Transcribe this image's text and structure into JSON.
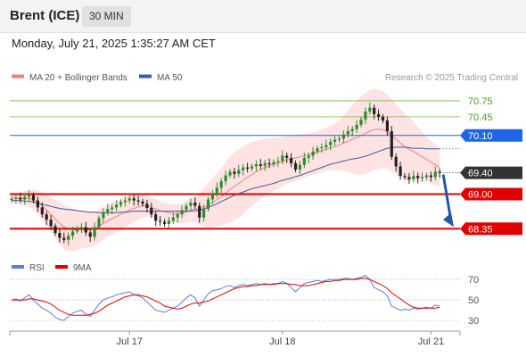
{
  "header": {
    "symbol": "Brent (ICE)",
    "interval": "30 MIN",
    "datetime": "Monday, July 21, 2025 1:35:27 AM CET"
  },
  "colors": {
    "bollinger": "#f08080",
    "bollinger_fill": "#ffd8d8",
    "ma50": "#3c5aa0",
    "candle_up": "#2e8b2e",
    "candle_down": "#222222",
    "resistance": "#6cbf3a",
    "pivot": "#1f66e5",
    "support": "#e00000",
    "last_price": "#333333",
    "arrow": "#2456a6",
    "rsi": "#5b7fd6",
    "rsi_ma": "#e00000"
  },
  "chart_data": [
    {
      "type": "candlestick",
      "legend": [
        {
          "label": "MA 20 + Bollinger Bands",
          "color": "#f08080"
        },
        {
          "label": "MA 50",
          "color": "#3c5aa0"
        }
      ],
      "credit": "Research © 2025 Trading Central",
      "ylim": [
        67.92,
        71.0
      ],
      "x_ticks": [
        {
          "index": 27,
          "label": "Jul 17"
        },
        {
          "index": 62,
          "label": "Jul 18"
        },
        {
          "index": 96,
          "label": "Jul 21"
        }
      ],
      "levels": [
        {
          "value": 70.75,
          "label": "70.75",
          "role": "resistance"
        },
        {
          "value": 70.45,
          "label": "70.45",
          "role": "resistance"
        },
        {
          "value": 70.1,
          "label": "70.10",
          "role": "pivot"
        },
        {
          "value": 69.4,
          "label": "69.40",
          "role": "last"
        },
        {
          "value": 69.0,
          "label": "69.00",
          "role": "support"
        },
        {
          "value": 68.35,
          "label": "68.35",
          "role": "support"
        }
      ],
      "close": [
        68.91,
        68.93,
        68.9,
        68.95,
        68.98,
        68.88,
        68.75,
        68.62,
        68.52,
        68.4,
        68.27,
        68.18,
        68.14,
        68.22,
        68.3,
        68.35,
        68.38,
        68.28,
        68.2,
        68.38,
        68.55,
        68.66,
        68.72,
        68.75,
        68.8,
        68.85,
        68.88,
        68.92,
        68.88,
        68.86,
        68.82,
        68.74,
        68.62,
        68.5,
        68.48,
        68.44,
        68.5,
        68.56,
        68.62,
        68.7,
        68.78,
        68.84,
        68.78,
        68.56,
        68.72,
        68.9,
        69.0,
        69.12,
        69.24,
        69.35,
        69.42,
        69.38,
        69.45,
        69.5,
        69.48,
        69.52,
        69.56,
        69.53,
        69.58,
        69.56,
        69.6,
        69.62,
        69.72,
        69.68,
        69.58,
        69.46,
        69.55,
        69.68,
        69.72,
        69.8,
        69.86,
        69.88,
        69.92,
        69.98,
        70.02,
        70.04,
        70.12,
        70.18,
        70.22,
        70.3,
        70.4,
        70.55,
        70.62,
        70.5,
        70.45,
        70.38,
        70.18,
        69.7,
        69.52,
        69.34,
        69.32,
        69.28,
        69.34,
        69.3,
        69.32,
        69.35,
        69.32,
        69.42,
        69.4
      ],
      "ma20": [
        68.94,
        68.92,
        68.92,
        68.92,
        68.92,
        68.9,
        68.85,
        68.78,
        68.7,
        68.62,
        68.53,
        68.45,
        68.38,
        68.35,
        68.33,
        68.33,
        68.33,
        68.33,
        68.33,
        68.36,
        68.4,
        68.45,
        68.5,
        68.54,
        68.58,
        68.62,
        68.66,
        68.7,
        68.73,
        68.76,
        68.78,
        68.78,
        68.75,
        68.72,
        68.69,
        68.67,
        68.65,
        68.64,
        68.63,
        68.64,
        68.67,
        68.7,
        68.72,
        68.72,
        68.75,
        68.79,
        68.84,
        68.9,
        68.95,
        69.02,
        69.09,
        69.14,
        69.2,
        69.26,
        69.32,
        69.37,
        69.42,
        69.46,
        69.5,
        69.53,
        69.56,
        69.58,
        69.61,
        69.64,
        69.66,
        69.68,
        69.7,
        69.72,
        69.74,
        69.76,
        69.79,
        69.81,
        69.84,
        69.87,
        69.89,
        69.92,
        69.96,
        69.99,
        70.03,
        70.06,
        70.1,
        70.14,
        70.18,
        70.21,
        70.22,
        70.21,
        70.17,
        70.1,
        70.03,
        69.96,
        69.89,
        69.84,
        69.8,
        69.75,
        69.7,
        69.65,
        69.6,
        69.55,
        69.5
      ],
      "ma50": [
        68.88,
        68.88,
        68.88,
        68.87,
        68.86,
        68.85,
        68.83,
        68.81,
        68.79,
        68.77,
        68.75,
        68.73,
        68.72,
        68.71,
        68.7,
        68.69,
        68.68,
        68.67,
        68.66,
        68.66,
        68.65,
        68.65,
        68.65,
        68.65,
        68.65,
        68.66,
        68.66,
        68.67,
        68.68,
        68.68,
        68.68,
        68.68,
        68.68,
        68.68,
        68.68,
        68.68,
        68.68,
        68.68,
        68.68,
        68.68,
        68.68,
        68.68,
        68.69,
        68.7,
        68.72,
        68.75,
        68.78,
        68.82,
        68.86,
        68.9,
        68.94,
        68.98,
        69.01,
        69.04,
        69.07,
        69.1,
        69.12,
        69.14,
        69.16,
        69.18,
        69.2,
        69.23,
        69.26,
        69.28,
        69.3,
        69.33,
        69.35,
        69.38,
        69.41,
        69.44,
        69.47,
        69.5,
        69.53,
        69.56,
        69.58,
        69.6,
        69.62,
        69.64,
        69.66,
        69.67,
        69.69,
        69.71,
        69.74,
        69.77,
        69.8,
        69.83,
        69.86,
        69.87,
        69.88,
        69.88,
        69.88,
        69.87,
        69.86,
        69.86,
        69.86,
        69.85,
        69.85,
        69.85,
        69.85
      ],
      "band_width": [
        0.1,
        0.11,
        0.12,
        0.14,
        0.16,
        0.19,
        0.22,
        0.26,
        0.3,
        0.33,
        0.36,
        0.4,
        0.42,
        0.42,
        0.4,
        0.38,
        0.35,
        0.33,
        0.32,
        0.32,
        0.32,
        0.31,
        0.3,
        0.3,
        0.3,
        0.3,
        0.28,
        0.27,
        0.26,
        0.24,
        0.22,
        0.2,
        0.19,
        0.18,
        0.17,
        0.17,
        0.17,
        0.17,
        0.18,
        0.19,
        0.2,
        0.22,
        0.24,
        0.3,
        0.36,
        0.42,
        0.46,
        0.5,
        0.54,
        0.58,
        0.62,
        0.64,
        0.64,
        0.64,
        0.62,
        0.6,
        0.58,
        0.56,
        0.54,
        0.52,
        0.5,
        0.48,
        0.46,
        0.45,
        0.44,
        0.43,
        0.42,
        0.41,
        0.4,
        0.4,
        0.4,
        0.4,
        0.4,
        0.42,
        0.44,
        0.48,
        0.52,
        0.58,
        0.64,
        0.7,
        0.74,
        0.76,
        0.77,
        0.76,
        0.74,
        0.72,
        0.7,
        0.68,
        0.66,
        0.64,
        0.62,
        0.6,
        0.56,
        0.5,
        0.46,
        0.42,
        0.4,
        0.38,
        0.36
      ],
      "forecast_arrow": {
        "from": 69.4,
        "to": 68.35
      }
    },
    {
      "type": "line",
      "legend": [
        {
          "label": "RSI",
          "color": "#5b7fd6"
        },
        {
          "label": "9MA",
          "color": "#e00000"
        }
      ],
      "ylim": [
        24,
        77
      ],
      "y_ticks": [
        {
          "value": 70,
          "label": "70"
        },
        {
          "value": 50,
          "label": "50"
        },
        {
          "value": 30,
          "label": "30"
        }
      ],
      "rsi": [
        50,
        51,
        49,
        52,
        55,
        50,
        46,
        42,
        40,
        37,
        33,
        31,
        30,
        34,
        37,
        39,
        40,
        36,
        34,
        40,
        46,
        50,
        52,
        53,
        55,
        56,
        57,
        58,
        55,
        54,
        52,
        48,
        44,
        40,
        39,
        38,
        40,
        42,
        44,
        48,
        52,
        55,
        52,
        44,
        50,
        56,
        59,
        60,
        61,
        63,
        64,
        62,
        64,
        65,
        64,
        65,
        66,
        65,
        66,
        65,
        66,
        66,
        68,
        66,
        62,
        58,
        62,
        66,
        67,
        68,
        69,
        68,
        69,
        70,
        70,
        70,
        71,
        71,
        70,
        71,
        72,
        74,
        70,
        62,
        60,
        58,
        54,
        44,
        42,
        40,
        41,
        40,
        42,
        41,
        42,
        43,
        42,
        45,
        44
      ],
      "ma9": [
        50,
        50,
        50,
        50,
        51,
        51,
        50,
        49,
        48,
        46,
        43,
        40,
        38,
        36,
        35,
        35,
        35,
        35,
        36,
        37,
        39,
        42,
        45,
        47,
        49,
        51,
        53,
        54,
        55,
        55,
        54,
        53,
        51,
        49,
        47,
        44,
        43,
        42,
        41,
        42,
        44,
        46,
        47,
        47,
        48,
        49,
        51,
        53,
        55,
        57,
        59,
        61,
        62,
        63,
        63,
        64,
        64,
        65,
        65,
        65,
        65,
        66,
        66,
        66,
        65,
        65,
        64,
        64,
        64,
        65,
        66,
        67,
        68,
        68,
        69,
        69,
        70,
        70,
        70,
        70,
        71,
        71,
        70,
        68,
        66,
        64,
        61,
        57,
        54,
        51,
        48,
        45,
        43,
        42,
        42,
        42,
        42,
        42,
        43
      ]
    }
  ]
}
